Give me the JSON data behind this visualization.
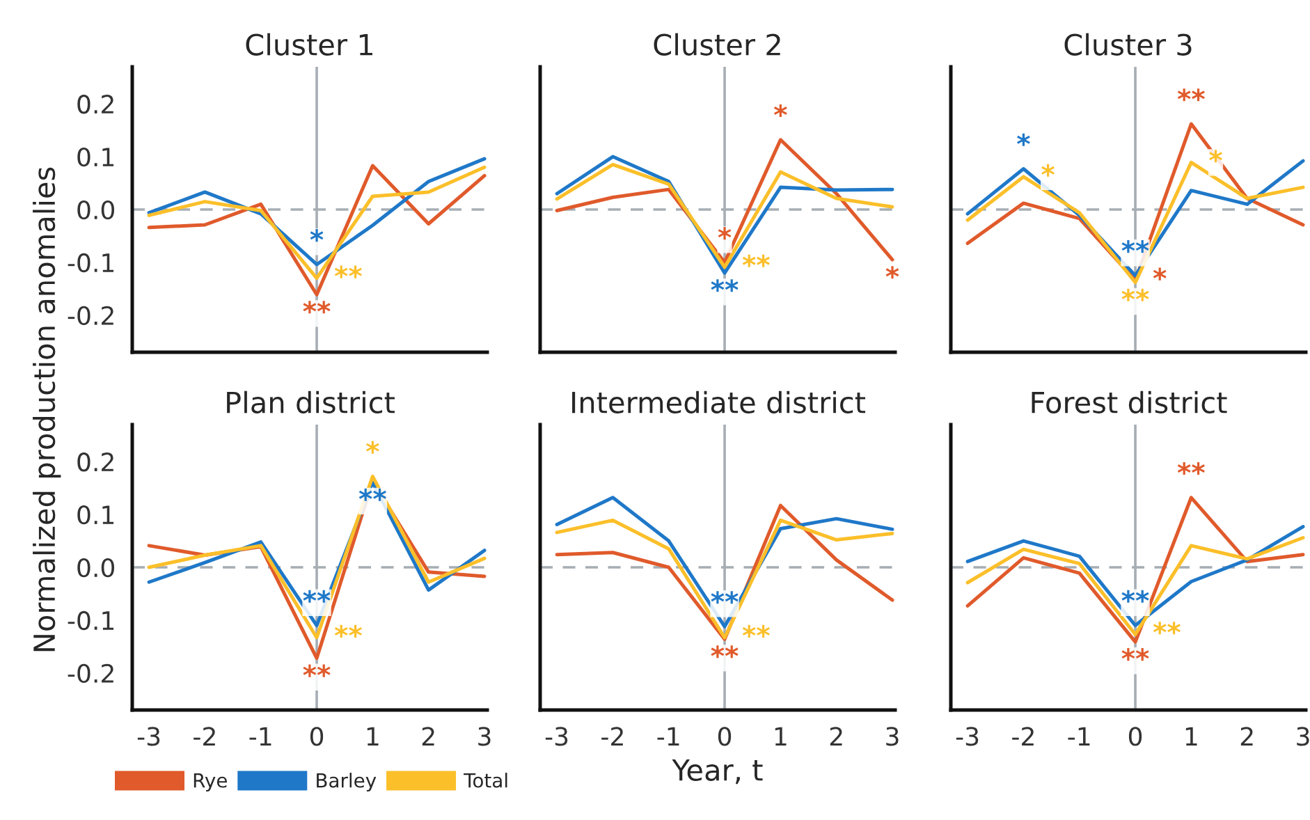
{
  "chart_data": [
    {
      "type": "line",
      "title": "Cluster 1",
      "x": [
        -3,
        -2,
        -1,
        0,
        1,
        2,
        3
      ],
      "xlim": [
        -3.3,
        3.05
      ],
      "ylim": [
        -0.27,
        0.27
      ],
      "xticks": [
        -3,
        -2,
        -1,
        0,
        1,
        2,
        3
      ],
      "yticks": [
        -0.2,
        -0.1,
        {
          "value": 0,
          "label": "0.0"
        },
        0.1,
        0.2
      ],
      "tick_labels": "y",
      "grid": false,
      "ylabel": "Normalized production anomalies",
      "legend": "bottom left",
      "series": [
        {
          "name": "Rye",
          "color": "#e05a2b",
          "values": [
            -0.034,
            -0.029,
            0.01,
            -0.161,
            0.083,
            -0.027,
            0.064
          ],
          "value_labels": [
            null,
            null,
            null,
            "**",
            null,
            null,
            null
          ]
        },
        {
          "name": "Barley",
          "color": "#1f78c8",
          "values": [
            -0.006,
            0.033,
            -0.008,
            -0.104,
            -0.03,
            0.053,
            0.096
          ],
          "value_labels": [
            null,
            null,
            null,
            "*",
            null,
            null,
            null
          ]
        },
        {
          "name": "Total",
          "color": "#fbbf2a",
          "values": [
            -0.011,
            0.015,
            -0.002,
            -0.13,
            0.025,
            0.033,
            0.08
          ],
          "value_labels": [
            null,
            null,
            null,
            "**",
            null,
            null,
            null
          ]
        }
      ],
      "ref_lines": [
        {
          "axis": "x",
          "value": 0,
          "color": "#a6aeb4",
          "line_style": "solid"
        },
        {
          "axis": "y",
          "value": 0,
          "color": "#a6aeb4",
          "line_style": "dashed"
        }
      ]
    },
    {
      "type": "line",
      "title": "Cluster 2",
      "x": [
        -3,
        -2,
        -1,
        0,
        1,
        2,
        3
      ],
      "xlim": [
        -3.3,
        3.05
      ],
      "ylim": [
        -0.27,
        0.27
      ],
      "xticks": [
        -3,
        -2,
        -1,
        0,
        1,
        2,
        3
      ],
      "yticks": [
        -0.2,
        -0.1,
        0,
        0.1,
        0.2
      ],
      "tick_labels": false,
      "grid": false,
      "series": [
        {
          "color": "#e05a2b",
          "values": [
            -0.002,
            0.023,
            0.038,
            -0.1,
            0.132,
            0.03,
            -0.095
          ],
          "value_labels": [
            null,
            null,
            null,
            "*",
            "*",
            null,
            "*"
          ]
        },
        {
          "color": "#1f78c8",
          "values": [
            0.03,
            0.1,
            0.053,
            -0.12,
            0.042,
            0.037,
            0.038
          ],
          "value_labels": [
            null,
            null,
            null,
            "**",
            null,
            null,
            null
          ]
        },
        {
          "color": "#fbbf2a",
          "values": [
            0.02,
            0.085,
            0.048,
            -0.109,
            0.071,
            0.021,
            0.005
          ],
          "value_labels": [
            null,
            null,
            null,
            "**",
            null,
            null,
            null
          ]
        }
      ],
      "ref_lines": [
        {
          "axis": "x",
          "value": 0,
          "color": "#a6aeb4",
          "line_style": "solid"
        },
        {
          "axis": "y",
          "value": 0,
          "color": "#a6aeb4",
          "line_style": "dashed"
        }
      ]
    },
    {
      "type": "line",
      "title": "Cluster 3",
      "x": [
        -3,
        -2,
        -1,
        0,
        1,
        2,
        3
      ],
      "xlim": [
        -3.3,
        3.05
      ],
      "ylim": [
        -0.27,
        0.27
      ],
      "xticks": [
        -3,
        -2,
        -1,
        0,
        1,
        2,
        3
      ],
      "yticks": [
        -0.2,
        -0.1,
        0,
        0.1,
        0.2
      ],
      "tick_labels": false,
      "grid": false,
      "series": [
        {
          "color": "#e05a2b",
          "values": [
            -0.064,
            0.012,
            -0.017,
            -0.134,
            0.162,
            0.021,
            -0.029
          ],
          "value_labels": [
            null,
            null,
            null,
            "*",
            "**",
            null,
            null
          ]
        },
        {
          "color": "#1f78c8",
          "values": [
            -0.008,
            0.077,
            -0.011,
            -0.125,
            0.036,
            0.01,
            0.092
          ],
          "value_labels": [
            null,
            "*",
            null,
            "**",
            null,
            null,
            null
          ]
        },
        {
          "color": "#fbbf2a",
          "values": [
            -0.02,
            0.062,
            -0.006,
            -0.138,
            0.089,
            0.021,
            0.042
          ],
          "value_labels": [
            null,
            "*",
            null,
            "**",
            "*",
            null,
            null
          ]
        }
      ],
      "ref_lines": [
        {
          "axis": "x",
          "value": 0,
          "color": "#a6aeb4",
          "line_style": "solid"
        },
        {
          "axis": "y",
          "value": 0,
          "color": "#a6aeb4",
          "line_style": "dashed"
        }
      ]
    },
    {
      "type": "line",
      "title": "Plan district",
      "x": [
        -3,
        -2,
        -1,
        0,
        1,
        2,
        3
      ],
      "xlim": [
        -3.3,
        3.05
      ],
      "ylim": [
        -0.27,
        0.27
      ],
      "xticks": [
        -3,
        -2,
        -1,
        0,
        1,
        2,
        3
      ],
      "yticks": [
        -0.2,
        -0.1,
        {
          "value": 0,
          "label": "0.0"
        },
        0.1,
        0.2
      ],
      "grid": false,
      "series": [
        {
          "color": "#e05a2b",
          "values": [
            0.041,
            0.023,
            0.039,
            -0.172,
            0.163,
            -0.009,
            -0.017
          ],
          "value_labels": [
            null,
            null,
            null,
            "**",
            null,
            null,
            null
          ]
        },
        {
          "color": "#1f78c8",
          "values": [
            -0.028,
            0.009,
            0.048,
            -0.11,
            0.161,
            -0.043,
            0.032
          ],
          "value_labels": [
            null,
            null,
            null,
            "**",
            "**",
            null,
            null
          ]
        },
        {
          "color": "#fbbf2a",
          "values": [
            0.0,
            0.023,
            0.041,
            -0.133,
            0.172,
            -0.028,
            0.017
          ],
          "value_labels": [
            null,
            null,
            null,
            "**",
            "*",
            null,
            null
          ]
        }
      ],
      "ref_lines": [
        {
          "axis": "x",
          "value": 0,
          "color": "#a6aeb4",
          "line_style": "solid"
        },
        {
          "axis": "y",
          "value": 0,
          "color": "#a6aeb4",
          "line_style": "dashed"
        }
      ]
    },
    {
      "type": "line",
      "title": "Intermediate district",
      "x": [
        -3,
        -2,
        -1,
        0,
        1,
        2,
        3
      ],
      "xlim": [
        -3.3,
        3.05
      ],
      "ylim": [
        -0.27,
        0.27
      ],
      "xticks": [
        -3,
        -2,
        -1,
        0,
        1,
        2,
        3
      ],
      "yticks": [
        -0.2,
        -0.1,
        0,
        0.1,
        0.2
      ],
      "tick_labels": "x",
      "grid": false,
      "xlabel": "Year, t",
      "series": [
        {
          "color": "#e05a2b",
          "values": [
            0.024,
            0.028,
            0.0,
            -0.136,
            0.117,
            0.014,
            -0.062
          ],
          "value_labels": [
            null,
            null,
            null,
            "**",
            null,
            null,
            null
          ]
        },
        {
          "color": "#1f78c8",
          "values": [
            0.081,
            0.132,
            0.05,
            -0.112,
            0.073,
            0.092,
            0.072
          ],
          "value_labels": [
            null,
            null,
            null,
            "**",
            null,
            null,
            null
          ]
        },
        {
          "color": "#fbbf2a",
          "values": [
            0.066,
            0.089,
            0.035,
            -0.133,
            0.089,
            0.052,
            0.064
          ],
          "value_labels": [
            null,
            null,
            null,
            "**",
            null,
            null,
            null
          ]
        }
      ],
      "ref_lines": [
        {
          "axis": "x",
          "value": 0,
          "color": "#a6aeb4",
          "line_style": "solid"
        },
        {
          "axis": "y",
          "value": 0,
          "color": "#a6aeb4",
          "line_style": "dashed"
        }
      ]
    },
    {
      "type": "line",
      "title": "Forest district",
      "x": [
        -3,
        -2,
        -1,
        0,
        1,
        2,
        3
      ],
      "xlim": [
        -3.3,
        3.05
      ],
      "ylim": [
        -0.27,
        0.27
      ],
      "xticks": [
        -3,
        -2,
        -1,
        0,
        1,
        2,
        3
      ],
      "yticks": [
        -0.2,
        -0.1,
        0,
        0.1,
        0.2
      ],
      "tick_labels": "x",
      "grid": false,
      "series": [
        {
          "color": "#e05a2b",
          "values": [
            -0.073,
            0.018,
            -0.011,
            -0.141,
            0.132,
            0.011,
            0.024
          ],
          "value_labels": [
            null,
            null,
            null,
            "**",
            "**",
            null,
            null
          ]
        },
        {
          "color": "#1f78c8",
          "values": [
            0.011,
            0.05,
            0.021,
            -0.11,
            -0.027,
            0.014,
            0.077
          ],
          "value_labels": [
            null,
            null,
            null,
            "**",
            null,
            null,
            null
          ]
        },
        {
          "color": "#fbbf2a",
          "values": [
            -0.029,
            0.034,
            0.007,
            -0.127,
            0.041,
            0.016,
            0.056
          ],
          "value_labels": [
            null,
            null,
            null,
            "**",
            null,
            null,
            null
          ]
        }
      ],
      "ref_lines": [
        {
          "axis": "x",
          "value": 0,
          "color": "#a6aeb4",
          "line_style": "solid"
        },
        {
          "axis": "y",
          "value": 0,
          "color": "#a6aeb4",
          "line_style": "dashed"
        }
      ]
    }
  ]
}
